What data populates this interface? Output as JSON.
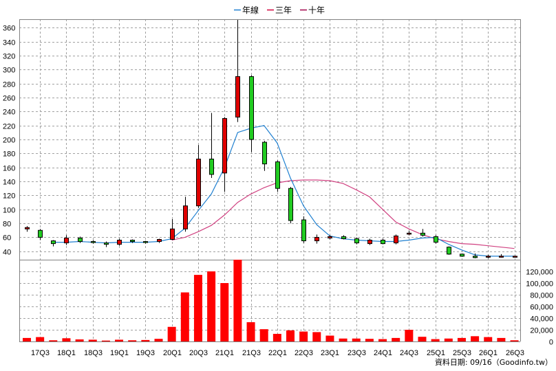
{
  "chart_data": {
    "type": "candlestick",
    "legend": [
      {
        "name": "年線",
        "color": "#1e7fd0"
      },
      {
        "name": "三年",
        "color": "#d0003c"
      },
      {
        "name": "十年",
        "color": "#a0004a"
      }
    ],
    "legend_placement": "top-center",
    "grid": true,
    "up_color": "#e00000",
    "down_color": "#22cc22",
    "volume_color": "#ff0000",
    "year_line_color": "#1e7fd0",
    "three_year_line_color": "#d04080",
    "x_labels": [
      "17Q3",
      "18Q1",
      "18Q3",
      "19Q1",
      "19Q3",
      "20Q1",
      "20Q3",
      "21Q1",
      "21Q3",
      "22Q1",
      "22Q3",
      "23Q1",
      "23Q3",
      "24Q1",
      "24Q3",
      "25Q1",
      "25Q3",
      "26Q1",
      "26Q3"
    ],
    "price_axis": {
      "ticks": [
        40,
        60,
        80,
        100,
        120,
        140,
        160,
        180,
        200,
        220,
        240,
        260,
        280,
        300,
        320,
        340,
        360
      ],
      "ylim": [
        28,
        372
      ],
      "side": "left"
    },
    "volume_axis": {
      "ticks": [
        "0",
        "20,000",
        "40,000",
        "60,000",
        "80,000",
        "100,000",
        "120,000"
      ],
      "tick_values": [
        0,
        20000,
        40000,
        60000,
        80000,
        100000,
        120000
      ],
      "ylim": [
        0,
        140000
      ],
      "side": "right"
    },
    "candles": [
      {
        "q": "17Q2",
        "o": 72,
        "h": 76,
        "l": 68,
        "c": 74
      },
      {
        "q": "17Q3",
        "o": 70,
        "h": 72,
        "l": 56,
        "c": 60
      },
      {
        "q": "17Q4",
        "o": 55,
        "h": 56,
        "l": 47,
        "c": 51
      },
      {
        "q": "18Q1",
        "o": 52,
        "h": 63,
        "l": 49,
        "c": 59
      },
      {
        "q": "18Q2",
        "o": 59,
        "h": 61,
        "l": 52,
        "c": 54
      },
      {
        "q": "18Q3",
        "o": 54,
        "h": 56,
        "l": 51,
        "c": 53
      },
      {
        "q": "18Q4",
        "o": 52,
        "h": 54,
        "l": 46,
        "c": 50
      },
      {
        "q": "19Q1",
        "o": 50,
        "h": 58,
        "l": 48,
        "c": 56
      },
      {
        "q": "19Q2",
        "o": 56,
        "h": 57,
        "l": 52,
        "c": 54
      },
      {
        "q": "19Q3",
        "o": 54,
        "h": 55,
        "l": 51,
        "c": 53
      },
      {
        "q": "19Q4",
        "o": 54,
        "h": 58,
        "l": 52,
        "c": 57
      },
      {
        "q": "20Q1",
        "o": 57,
        "h": 86,
        "l": 56,
        "c": 72
      },
      {
        "q": "20Q2",
        "o": 72,
        "h": 118,
        "l": 68,
        "c": 105
      },
      {
        "q": "20Q3",
        "o": 105,
        "h": 192,
        "l": 102,
        "c": 172
      },
      {
        "q": "20Q4",
        "o": 172,
        "h": 238,
        "l": 145,
        "c": 150
      },
      {
        "q": "21Q1",
        "o": 152,
        "h": 232,
        "l": 125,
        "c": 230
      },
      {
        "q": "21Q2",
        "o": 232,
        "h": 371,
        "l": 225,
        "c": 290
      },
      {
        "q": "21Q3",
        "o": 290,
        "h": 292,
        "l": 182,
        "c": 200
      },
      {
        "q": "21Q4",
        "o": 196,
        "h": 198,
        "l": 155,
        "c": 165
      },
      {
        "q": "22Q1",
        "o": 168,
        "h": 170,
        "l": 125,
        "c": 130
      },
      {
        "q": "22Q2",
        "o": 130,
        "h": 132,
        "l": 80,
        "c": 84
      },
      {
        "q": "22Q3",
        "o": 85,
        "h": 90,
        "l": 52,
        "c": 55
      },
      {
        "q": "22Q4",
        "o": 55,
        "h": 64,
        "l": 51,
        "c": 60
      },
      {
        "q": "23Q1",
        "o": 59,
        "h": 63,
        "l": 57,
        "c": 61
      },
      {
        "q": "23Q2",
        "o": 61,
        "h": 63,
        "l": 57,
        "c": 58
      },
      {
        "q": "23Q3",
        "o": 58,
        "h": 60,
        "l": 50,
        "c": 52
      },
      {
        "q": "23Q4",
        "o": 51,
        "h": 58,
        "l": 49,
        "c": 56
      },
      {
        "q": "24Q1",
        "o": 56,
        "h": 58,
        "l": 50,
        "c": 51
      },
      {
        "q": "24Q2",
        "o": 52,
        "h": 64,
        "l": 50,
        "c": 62
      },
      {
        "q": "24Q3",
        "o": 65,
        "h": 69,
        "l": 63,
        "c": 66
      },
      {
        "q": "24Q4",
        "o": 66,
        "h": 72,
        "l": 61,
        "c": 63
      },
      {
        "q": "25Q1",
        "o": 61,
        "h": 63,
        "l": 51,
        "c": 53
      },
      {
        "q": "25Q2",
        "o": 46,
        "h": 47,
        "l": 35,
        "c": 36
      },
      {
        "q": "25Q3",
        "o": 36,
        "h": 37,
        "l": 32,
        "c": 33
      },
      {
        "q": "25Q4",
        "o": 33,
        "h": 37,
        "l": 30,
        "c": 31
      },
      {
        "q": "26Q1",
        "o": 33,
        "h": 35,
        "l": 30,
        "c": 33
      },
      {
        "q": "26Q2",
        "o": 33,
        "h": 36,
        "l": 31,
        "c": 33
      },
      {
        "q": "26Q3",
        "o": 32,
        "h": 34,
        "l": 31,
        "c": 33
      }
    ],
    "year_line": [
      {
        "q": "17Q4",
        "v": 53
      },
      {
        "q": "18Q1",
        "v": 53
      },
      {
        "q": "18Q2",
        "v": 54
      },
      {
        "q": "18Q3",
        "v": 53
      },
      {
        "q": "18Q4",
        "v": 52
      },
      {
        "q": "19Q1",
        "v": 53
      },
      {
        "q": "19Q2",
        "v": 53
      },
      {
        "q": "19Q3",
        "v": 53
      },
      {
        "q": "19Q4",
        "v": 54
      },
      {
        "q": "20Q1",
        "v": 58
      },
      {
        "q": "20Q2",
        "v": 73
      },
      {
        "q": "20Q3",
        "v": 98
      },
      {
        "q": "20Q4",
        "v": 122
      },
      {
        "q": "21Q1",
        "v": 160
      },
      {
        "q": "21Q2",
        "v": 210
      },
      {
        "q": "21Q3",
        "v": 216
      },
      {
        "q": "21Q4",
        "v": 220
      },
      {
        "q": "22Q1",
        "v": 195
      },
      {
        "q": "22Q2",
        "v": 145
      },
      {
        "q": "22Q3",
        "v": 105
      },
      {
        "q": "22Q4",
        "v": 78
      },
      {
        "q": "23Q1",
        "v": 62
      },
      {
        "q": "23Q2",
        "v": 58
      },
      {
        "q": "23Q3",
        "v": 56
      },
      {
        "q": "23Q4",
        "v": 55
      },
      {
        "q": "24Q1",
        "v": 54
      },
      {
        "q": "24Q2",
        "v": 54
      },
      {
        "q": "24Q3",
        "v": 56
      },
      {
        "q": "24Q4",
        "v": 59
      },
      {
        "q": "25Q1",
        "v": 60
      },
      {
        "q": "25Q2",
        "v": 50
      },
      {
        "q": "25Q3",
        "v": 42
      },
      {
        "q": "25Q4",
        "v": 35
      },
      {
        "q": "26Q1",
        "v": 33
      },
      {
        "q": "26Q2",
        "v": 33
      },
      {
        "q": "26Q3",
        "v": 33
      }
    ],
    "three_year_line": [
      {
        "q": "20Q1",
        "v": 56
      },
      {
        "q": "20Q2",
        "v": 60
      },
      {
        "q": "20Q3",
        "v": 68
      },
      {
        "q": "20Q4",
        "v": 77
      },
      {
        "q": "21Q1",
        "v": 92
      },
      {
        "q": "21Q2",
        "v": 110
      },
      {
        "q": "21Q3",
        "v": 122
      },
      {
        "q": "21Q4",
        "v": 131
      },
      {
        "q": "22Q1",
        "v": 138
      },
      {
        "q": "22Q2",
        "v": 141
      },
      {
        "q": "22Q3",
        "v": 142
      },
      {
        "q": "22Q4",
        "v": 142
      },
      {
        "q": "23Q1",
        "v": 141
      },
      {
        "q": "23Q2",
        "v": 137
      },
      {
        "q": "23Q3",
        "v": 128
      },
      {
        "q": "23Q4",
        "v": 118
      },
      {
        "q": "24Q1",
        "v": 100
      },
      {
        "q": "24Q2",
        "v": 82
      },
      {
        "q": "24Q3",
        "v": 72
      },
      {
        "q": "24Q4",
        "v": 64
      },
      {
        "q": "25Q1",
        "v": 58
      },
      {
        "q": "25Q2",
        "v": 54
      },
      {
        "q": "25Q3",
        "v": 51
      },
      {
        "q": "25Q4",
        "v": 50
      },
      {
        "q": "26Q1",
        "v": 48
      },
      {
        "q": "26Q2",
        "v": 46
      },
      {
        "q": "26Q3",
        "v": 44
      }
    ],
    "volume": [
      {
        "q": "17Q2",
        "v": 6000
      },
      {
        "q": "17Q3",
        "v": 7500
      },
      {
        "q": "17Q4",
        "v": 2000
      },
      {
        "q": "18Q1",
        "v": 5500
      },
      {
        "q": "18Q2",
        "v": 3500
      },
      {
        "q": "18Q3",
        "v": 3000
      },
      {
        "q": "18Q4",
        "v": 1500
      },
      {
        "q": "19Q1",
        "v": 3000
      },
      {
        "q": "19Q2",
        "v": 2000
      },
      {
        "q": "19Q3",
        "v": 2500
      },
      {
        "q": "19Q4",
        "v": 4500
      },
      {
        "q": "20Q1",
        "v": 25000
      },
      {
        "q": "20Q2",
        "v": 84000
      },
      {
        "q": "20Q3",
        "v": 114000
      },
      {
        "q": "20Q4",
        "v": 120000
      },
      {
        "q": "21Q1",
        "v": 100000
      },
      {
        "q": "21Q2",
        "v": 140000
      },
      {
        "q": "21Q3",
        "v": 33000
      },
      {
        "q": "21Q4",
        "v": 21000
      },
      {
        "q": "22Q1",
        "v": 13000
      },
      {
        "q": "22Q2",
        "v": 19000
      },
      {
        "q": "22Q3",
        "v": 17000
      },
      {
        "q": "22Q4",
        "v": 16000
      },
      {
        "q": "23Q1",
        "v": 10000
      },
      {
        "q": "23Q2",
        "v": 5000
      },
      {
        "q": "23Q3",
        "v": 5000
      },
      {
        "q": "23Q4",
        "v": 4500
      },
      {
        "q": "24Q1",
        "v": 4000
      },
      {
        "q": "24Q2",
        "v": 6000
      },
      {
        "q": "24Q3",
        "v": 20000
      },
      {
        "q": "24Q4",
        "v": 8000
      },
      {
        "q": "25Q1",
        "v": 4000
      },
      {
        "q": "25Q2",
        "v": 5000
      },
      {
        "q": "25Q3",
        "v": 6000
      },
      {
        "q": "25Q4",
        "v": 9000
      },
      {
        "q": "26Q1",
        "v": 7500
      },
      {
        "q": "26Q2",
        "v": 6000
      },
      {
        "q": "26Q3",
        "v": 2000
      }
    ]
  },
  "footer": {
    "text": "資料日期: 09/16（Goodinfo.tw）"
  }
}
